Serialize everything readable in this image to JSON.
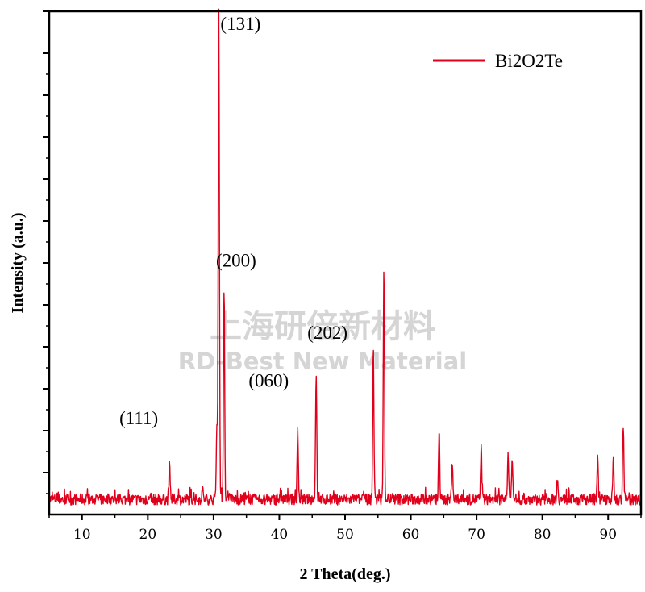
{
  "chart_data": {
    "type": "line",
    "xlabel": "2 Theta(deg.)",
    "ylabel": "Intensity (a.u.)",
    "xlim": [
      5,
      95
    ],
    "ylim": [
      0,
      1
    ],
    "x_ticks": [
      10,
      20,
      30,
      40,
      50,
      60,
      70,
      80,
      90
    ],
    "y_ticks_labeled": false,
    "grid": false,
    "legend_position": "top-right",
    "series": [
      {
        "name": "Bi2O2Te",
        "color": "#e0001b",
        "baseline": 0.03,
        "peaks": [
          {
            "x": 23.3,
            "y": 0.105
          },
          {
            "x": 28.3,
            "y": 0.055
          },
          {
            "x": 30.5,
            "y": 0.17
          },
          {
            "x": 30.8,
            "y": 1.0
          },
          {
            "x": 31.6,
            "y": 0.44
          },
          {
            "x": 42.8,
            "y": 0.17
          },
          {
            "x": 45.6,
            "y": 0.275
          },
          {
            "x": 54.3,
            "y": 0.33
          },
          {
            "x": 55.9,
            "y": 0.495
          },
          {
            "x": 64.3,
            "y": 0.17
          },
          {
            "x": 66.3,
            "y": 0.11
          },
          {
            "x": 70.7,
            "y": 0.13
          },
          {
            "x": 74.8,
            "y": 0.12
          },
          {
            "x": 75.4,
            "y": 0.11
          },
          {
            "x": 82.3,
            "y": 0.075
          },
          {
            "x": 88.4,
            "y": 0.12
          },
          {
            "x": 90.8,
            "y": 0.11
          },
          {
            "x": 92.3,
            "y": 0.18
          }
        ]
      }
    ],
    "annotations": [
      {
        "text": "(131)",
        "x": 30.8,
        "y": 0.95
      },
      {
        "text": "(200)",
        "x": 31.6,
        "y": 0.47
      },
      {
        "text": "(202)",
        "x": 45.6,
        "y": 0.33
      },
      {
        "text": "(060)",
        "x": 42.8,
        "y": 0.27
      },
      {
        "text": "(111)",
        "x": 23.3,
        "y": 0.16
      }
    ]
  },
  "watermark": {
    "chinese": "上海研倍新材料",
    "english": "RD-Best New Material"
  }
}
